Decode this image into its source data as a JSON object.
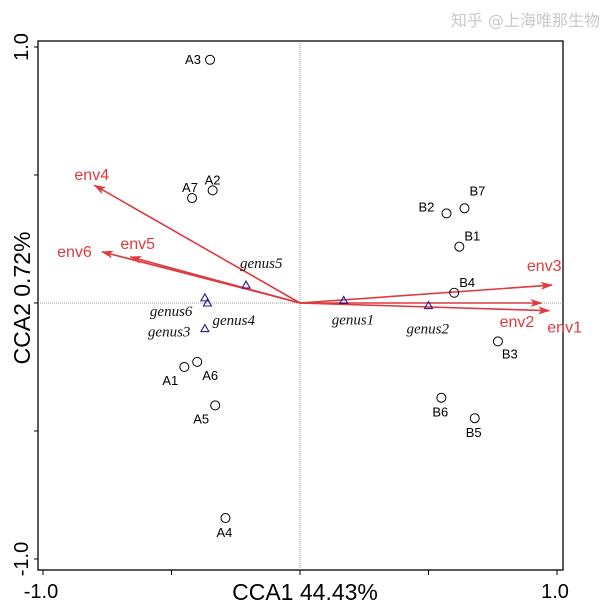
{
  "chart_data": {
    "type": "scatter",
    "subtype": "CCA biplot",
    "xlabel": "CCA1 44.43%",
    "ylabel": "CCA2 0.72%",
    "xlim": [
      -1.05,
      1.02
    ],
    "ylim": [
      -1.03,
      1.03
    ],
    "x_ticks": [
      -1.0,
      -0.5,
      0,
      0.5,
      1.0
    ],
    "x_tick_labels": [
      "-1.0",
      "",
      "",
      "",
      "1.0"
    ],
    "y_ticks": [
      -1.0,
      -0.5,
      0,
      0.5,
      1.0
    ],
    "y_tick_labels": [
      "-1.0",
      "",
      "",
      "",
      "1.0"
    ],
    "grid": false,
    "zero_lines": true,
    "colors": {
      "sites": "#000000",
      "genus": "#2a1a8c",
      "env": "#e0393e"
    },
    "sites": [
      {
        "name": "A3",
        "x": -0.35,
        "y": 0.95
      },
      {
        "name": "A2",
        "x": -0.34,
        "y": 0.44
      },
      {
        "name": "A7",
        "x": -0.42,
        "y": 0.41
      },
      {
        "name": "A1",
        "x": -0.45,
        "y": -0.25
      },
      {
        "name": "A6",
        "x": -0.4,
        "y": -0.23
      },
      {
        "name": "A5",
        "x": -0.33,
        "y": -0.4
      },
      {
        "name": "A4",
        "x": -0.29,
        "y": -0.84
      },
      {
        "name": "B7",
        "x": 0.64,
        "y": 0.37
      },
      {
        "name": "B2",
        "x": 0.57,
        "y": 0.35
      },
      {
        "name": "B1",
        "x": 0.62,
        "y": 0.22
      },
      {
        "name": "B4",
        "x": 0.6,
        "y": 0.04
      },
      {
        "name": "B3",
        "x": 0.77,
        "y": -0.15
      },
      {
        "name": "B6",
        "x": 0.55,
        "y": -0.37
      },
      {
        "name": "B5",
        "x": 0.68,
        "y": -0.45
      }
    ],
    "genus": [
      {
        "name": "genus5",
        "x": -0.21,
        "y": 0.07
      },
      {
        "name": "genus6",
        "x": -0.37,
        "y": 0.02
      },
      {
        "name": "genus4",
        "x": -0.36,
        "y": 0.0
      },
      {
        "name": "genus3",
        "x": -0.37,
        "y": -0.1
      },
      {
        "name": "genus1",
        "x": 0.17,
        "y": 0.01
      },
      {
        "name": "genus2",
        "x": 0.5,
        "y": -0.01
      }
    ],
    "env": [
      {
        "name": "env1",
        "x": 0.97,
        "y": -0.03
      },
      {
        "name": "env2",
        "x": 0.94,
        "y": 0.0
      },
      {
        "name": "env3",
        "x": 0.98,
        "y": 0.07
      },
      {
        "name": "env4",
        "x": -0.8,
        "y": 0.46
      },
      {
        "name": "env5",
        "x": -0.66,
        "y": 0.18
      },
      {
        "name": "env6",
        "x": -0.77,
        "y": 0.2
      }
    ]
  },
  "watermark": "知乎 @上海唯那生物"
}
